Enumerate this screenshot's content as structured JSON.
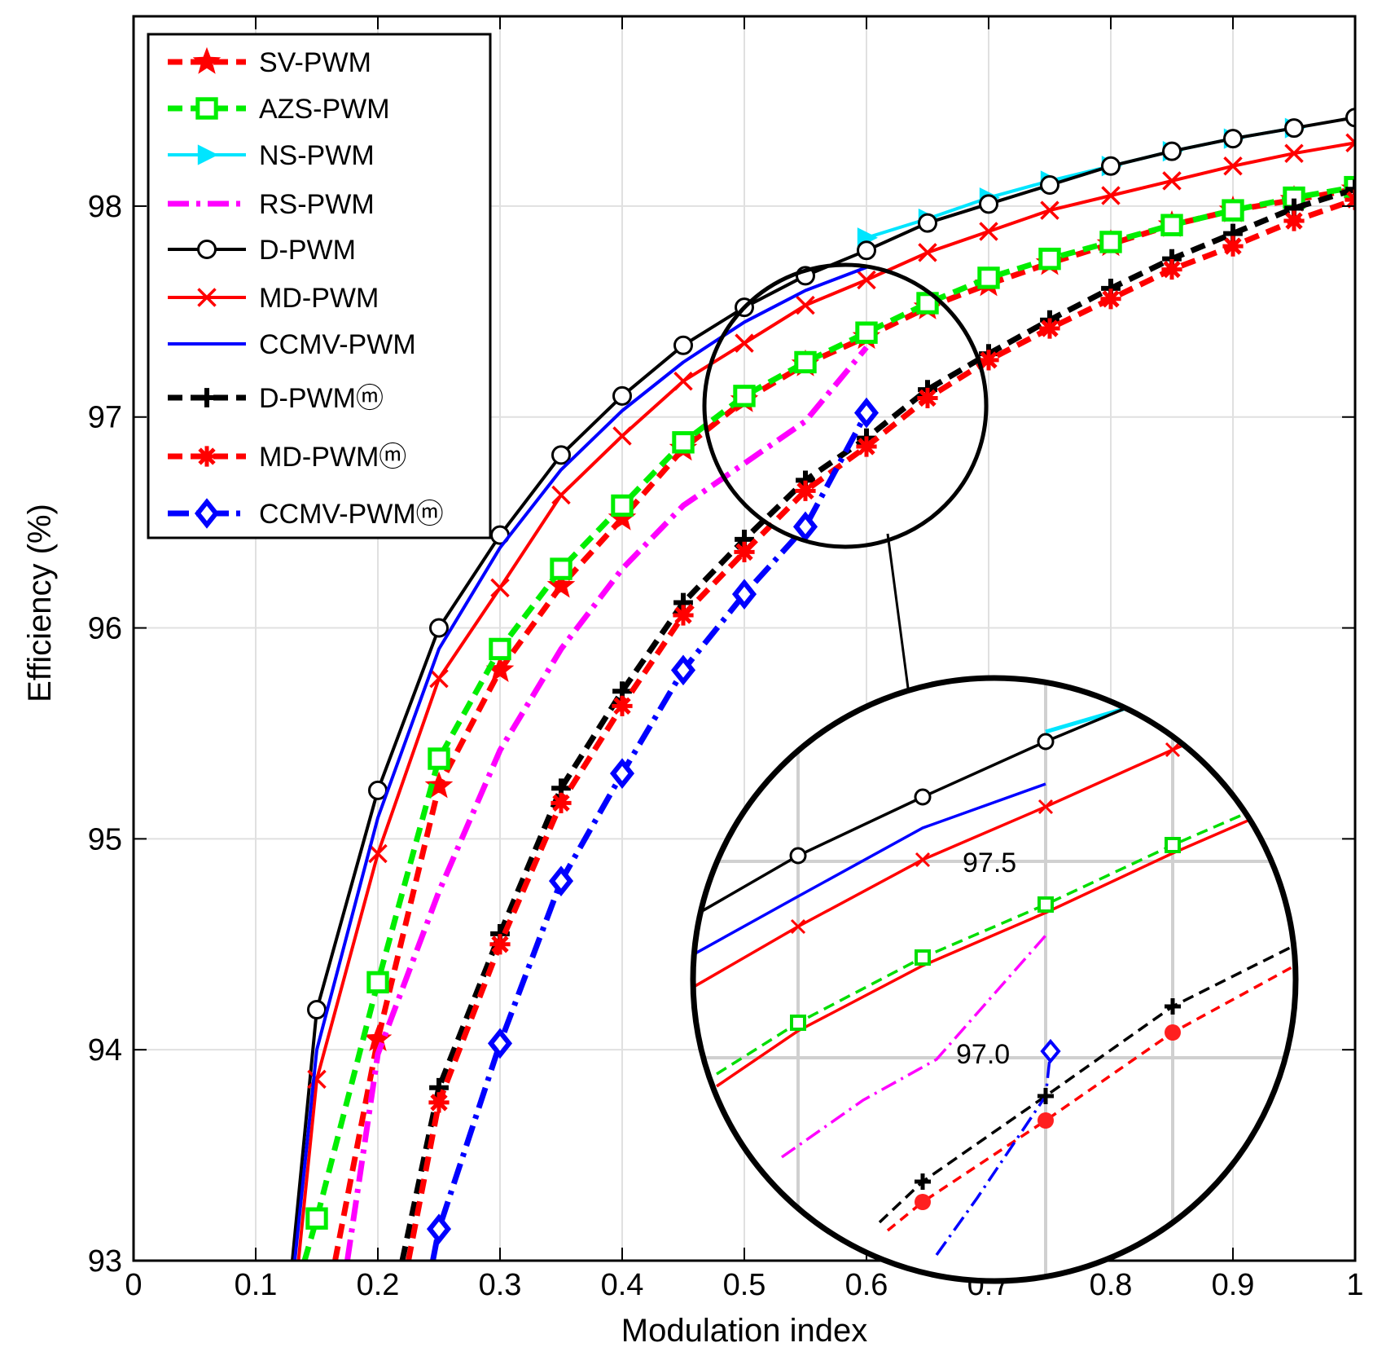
{
  "chart_data": {
    "type": "line",
    "xlabel": "Modulation index",
    "ylabel": "Efficiency (%)",
    "xlim": [
      0,
      1
    ],
    "ylim": [
      93,
      98.9
    ],
    "xticks": [
      0,
      0.1,
      0.2,
      0.3,
      0.4,
      0.5,
      0.6,
      0.7,
      0.8,
      0.9,
      1
    ],
    "xtick_labels": [
      "0",
      "0.1",
      "0.2",
      "0.3",
      "0.4",
      "0.5",
      "0.6",
      "0.7",
      "0.8",
      "0.9",
      "1"
    ],
    "yticks": [
      93,
      94,
      95,
      96,
      97,
      98
    ],
    "ytick_labels": [
      "93",
      "94",
      "95",
      "96",
      "97",
      "98"
    ],
    "grid": true,
    "legend_position": "top-left",
    "series": [
      {
        "name": "SV-PWM",
        "color": "#ff0000",
        "style": "dashed",
        "marker": "star",
        "x": [
          0.165,
          0.2,
          0.25,
          0.3,
          0.35,
          0.4,
          0.45,
          0.5,
          0.55,
          0.6,
          0.65,
          0.7,
          0.75,
          0.8,
          0.85,
          0.9,
          0.95,
          1.0
        ],
        "y": [
          93.0,
          94.05,
          95.25,
          95.8,
          96.2,
          96.52,
          96.85,
          97.08,
          97.25,
          97.38,
          97.52,
          97.63,
          97.73,
          97.82,
          97.91,
          97.98,
          98.03,
          98.08
        ]
      },
      {
        "name": "AZS-PWM",
        "color": "#00ee00",
        "style": "dashed",
        "marker": "square",
        "x": [
          0.14,
          0.15,
          0.2,
          0.25,
          0.3,
          0.35,
          0.4,
          0.45,
          0.5,
          0.55,
          0.6,
          0.65,
          0.7,
          0.75,
          0.8,
          0.85,
          0.9,
          0.95,
          1.0
        ],
        "y": [
          93.0,
          93.2,
          94.32,
          95.38,
          95.9,
          96.28,
          96.58,
          96.88,
          97.1,
          97.26,
          97.4,
          97.54,
          97.66,
          97.75,
          97.83,
          97.91,
          97.98,
          98.04,
          98.09
        ]
      },
      {
        "name": "NS-PWM",
        "color": "#00e5ff",
        "style": "solid",
        "marker": "triangle-right",
        "x": [
          0.6,
          0.65,
          0.7,
          0.75,
          0.8,
          0.85,
          0.9,
          0.95
        ],
        "y": [
          97.85,
          97.94,
          98.04,
          98.12,
          98.19,
          98.26,
          98.32,
          98.37
        ]
      },
      {
        "name": "RS-PWM",
        "color": "#ff00ff",
        "style": "dashdot",
        "marker": "none",
        "x": [
          0.175,
          0.2,
          0.25,
          0.3,
          0.35,
          0.4,
          0.45,
          0.5,
          0.55,
          0.6
        ],
        "y": [
          93.0,
          93.98,
          94.75,
          95.42,
          95.9,
          96.28,
          96.58,
          96.78,
          96.98,
          97.33
        ]
      },
      {
        "name": "D-PWM",
        "color": "#000000",
        "style": "solid",
        "marker": "circle",
        "x": [
          0.13,
          0.15,
          0.2,
          0.25,
          0.3,
          0.35,
          0.4,
          0.45,
          0.5,
          0.55,
          0.6,
          0.65,
          0.7,
          0.75,
          0.8,
          0.85,
          0.9,
          0.95,
          1.0
        ],
        "y": [
          93.0,
          94.19,
          95.23,
          96.0,
          96.44,
          96.82,
          97.1,
          97.34,
          97.52,
          97.67,
          97.79,
          97.92,
          98.01,
          98.1,
          98.19,
          98.26,
          98.32,
          98.37,
          98.42
        ]
      },
      {
        "name": "MD-PWM",
        "color": "#ff0000",
        "style": "solid",
        "marker": "x",
        "x": [
          0.135,
          0.15,
          0.2,
          0.25,
          0.3,
          0.35,
          0.4,
          0.45,
          0.5,
          0.55,
          0.6,
          0.65,
          0.7,
          0.75,
          0.8,
          0.85,
          0.9,
          0.95,
          1.0
        ],
        "y": [
          93.0,
          93.86,
          94.93,
          95.76,
          96.19,
          96.63,
          96.91,
          97.17,
          97.35,
          97.53,
          97.65,
          97.78,
          97.88,
          97.98,
          98.05,
          98.12,
          98.19,
          98.25,
          98.3
        ]
      },
      {
        "name": "CCMV-PWM",
        "color": "#0000ff",
        "style": "solid",
        "marker": "none",
        "x": [
          0.132,
          0.15,
          0.2,
          0.25,
          0.3,
          0.35,
          0.4,
          0.45,
          0.5,
          0.55,
          0.6
        ],
        "y": [
          93.0,
          94.0,
          95.1,
          95.9,
          96.38,
          96.75,
          97.03,
          97.26,
          97.45,
          97.6,
          97.71
        ]
      },
      {
        "name": "D-PWMⓜ",
        "color": "#000000",
        "style": "dashed",
        "marker": "plus",
        "x": [
          0.22,
          0.25,
          0.3,
          0.35,
          0.4,
          0.45,
          0.5,
          0.55,
          0.6,
          0.65,
          0.7,
          0.75,
          0.8,
          0.85,
          0.9,
          0.95,
          1.0
        ],
        "y": [
          93.0,
          93.82,
          94.55,
          95.24,
          95.7,
          96.12,
          96.42,
          96.7,
          96.9,
          97.13,
          97.3,
          97.46,
          97.61,
          97.75,
          97.87,
          97.99,
          98.08
        ]
      },
      {
        "name": "MD-PWMⓜ",
        "color": "#ff0000",
        "style": "dashed",
        "marker": "asterisk",
        "x": [
          0.225,
          0.25,
          0.3,
          0.35,
          0.4,
          0.45,
          0.5,
          0.55,
          0.6,
          0.65,
          0.7,
          0.75,
          0.8,
          0.85,
          0.9,
          0.95,
          1.0
        ],
        "y": [
          93.0,
          93.75,
          94.5,
          95.17,
          95.63,
          96.06,
          96.36,
          96.65,
          96.86,
          97.09,
          97.27,
          97.42,
          97.56,
          97.7,
          97.81,
          97.93,
          98.03
        ]
      },
      {
        "name": "CCMV-PWMⓜ",
        "color": "#0000ff",
        "style": "dashdot",
        "marker": "diamond",
        "x": [
          0.245,
          0.25,
          0.3,
          0.35,
          0.4,
          0.45,
          0.5,
          0.55,
          0.6
        ],
        "y": [
          93.0,
          93.15,
          94.03,
          94.8,
          95.31,
          95.8,
          96.16,
          96.48,
          97.02
        ]
      }
    ],
    "inset": {
      "label_high": "97.5",
      "label_low": "97.0"
    }
  }
}
